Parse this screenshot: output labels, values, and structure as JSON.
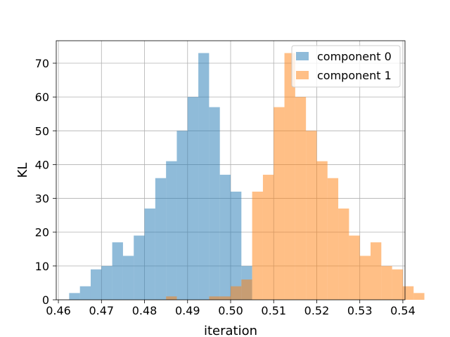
{
  "chart_data": {
    "type": "bar",
    "xlabel": "iteration",
    "ylabel": "KL",
    "xlim": [
      0.4595,
      0.5405
    ],
    "ylim": [
      0,
      76.65
    ],
    "x_ticks": [
      0.46,
      0.47,
      0.48,
      0.49,
      0.5,
      0.51,
      0.52,
      0.53,
      0.54
    ],
    "x_tick_labels": [
      "0.46",
      "0.47",
      "0.48",
      "0.49",
      "0.50",
      "0.51",
      "0.52",
      "0.53",
      "0.54"
    ],
    "y_ticks": [
      0,
      10,
      20,
      30,
      40,
      50,
      60,
      70
    ],
    "y_tick_labels": [
      "0",
      "10",
      "20",
      "30",
      "40",
      "50",
      "60",
      "70"
    ],
    "grid": true,
    "legend_position": "top-right",
    "bin_width": 0.0025,
    "series": [
      {
        "name": "component 0",
        "color": "#1f77b4",
        "opacity": 0.5,
        "bin_start": 0.4625,
        "values": [
          2,
          4,
          9,
          10,
          17,
          13,
          19,
          27,
          36,
          41,
          50,
          60,
          73,
          57,
          37,
          32,
          10,
          0,
          0,
          0,
          0,
          0,
          0,
          0,
          0,
          0,
          0,
          0,
          0,
          0
        ]
      },
      {
        "name": "component 1",
        "color": "#ff7f0e",
        "opacity": 0.5,
        "bin_start": 0.4625,
        "values": [
          0,
          0,
          0,
          0,
          0,
          0,
          0,
          0,
          0,
          1,
          0,
          0,
          0,
          1,
          1,
          4,
          6,
          32,
          37,
          57,
          73,
          60,
          50,
          41,
          36,
          27,
          19,
          13,
          17,
          10,
          9,
          4,
          2
        ]
      }
    ]
  }
}
